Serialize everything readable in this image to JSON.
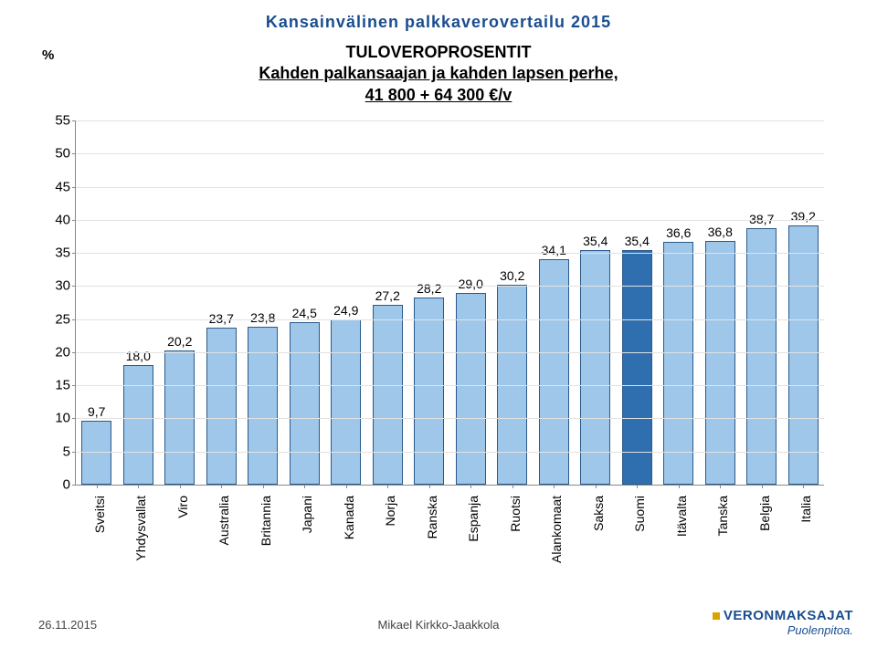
{
  "header": {
    "title": "Kansainvälinen palkkaverovertailu 2015",
    "fontsize": 18,
    "color": "#1a4d8f"
  },
  "chart": {
    "type": "bar",
    "y_axis_symbol": "%",
    "title_line1": "TULOVEROPROSENTIT",
    "title_line2": "Kahden palkansaajan ja kahden lapsen perhe,",
    "title_line3": "41 800 + 64 300 €/v",
    "title_fontsize": 18,
    "ylim": [
      0,
      55
    ],
    "ytick_step": 5,
    "yticks": [
      0,
      5,
      10,
      15,
      20,
      25,
      30,
      35,
      40,
      45,
      50,
      55
    ],
    "tick_fontsize": 15,
    "value_label_fontsize": 14,
    "xlabel_fontsize": 14,
    "bar_color": "#9ec7ea",
    "bar_highlight_color": "#2f6fb0",
    "bar_border_color": "#2b5a8a",
    "grid_color": "#e2e2e2",
    "axis_color": "#888888",
    "bar_width_ratio": 0.72,
    "categories": [
      "Sveitsi",
      "Yhdysvallat",
      "Viro",
      "Australia",
      "Britannia",
      "Japani",
      "Kanada",
      "Norja",
      "Ranska",
      "Espanja",
      "Ruotsi",
      "Alankomaat",
      "Saksa",
      "Suomi",
      "Itävalta",
      "Tanska",
      "Belgia",
      "Italia"
    ],
    "values": [
      9.7,
      18.0,
      20.2,
      23.7,
      23.8,
      24.5,
      24.9,
      27.2,
      28.2,
      29.0,
      30.2,
      34.1,
      35.4,
      35.4,
      36.6,
      36.8,
      38.7,
      39.2
    ],
    "value_labels": [
      "9,7",
      "18,0",
      "20,2",
      "23,7",
      "23,8",
      "24,5",
      "24,9",
      "27,2",
      "28,2",
      "29,0",
      "30,2",
      "34,1",
      "35,4",
      "35,4",
      "36,6",
      "36,8",
      "38,7",
      "39,2"
    ],
    "highlight_index": 13
  },
  "footer": {
    "date": "26.11.2015",
    "center": "Mikael Kirkko-Jaakkola",
    "logo_main": "VERONMAKSAJAT",
    "logo_sub": "Puolenpitoa.",
    "footer_fontsize": 13,
    "logo_main_fontsize": 15,
    "logo_sub_fontsize": 13,
    "logo_color": "#1a4d8f",
    "logo_bullet_color": "#d8a400"
  }
}
